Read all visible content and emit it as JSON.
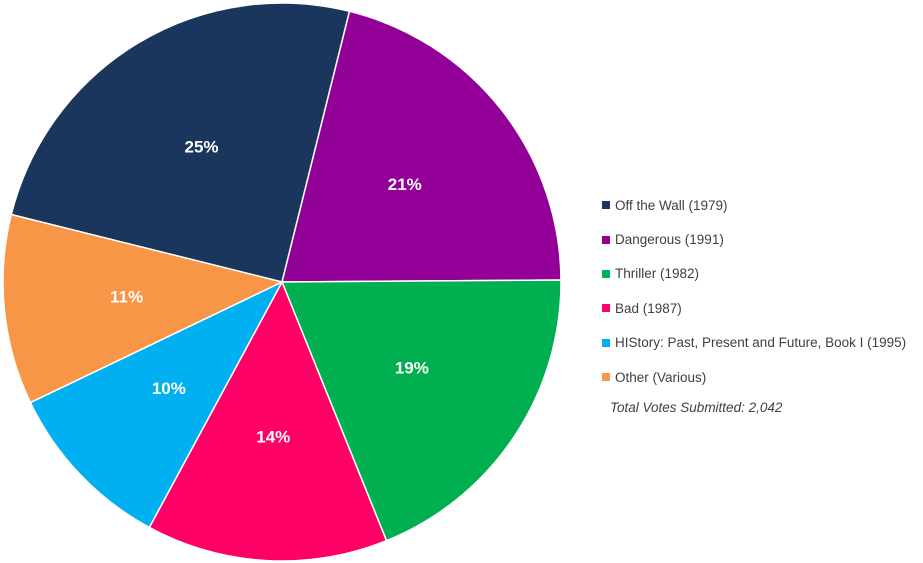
{
  "chart_data": {
    "type": "pie",
    "slices": [
      {
        "label": "Off the Wall (1979)",
        "value": 25,
        "display": "25%",
        "color": "#1b365d"
      },
      {
        "label": "Dangerous (1991)",
        "value": 21,
        "display": "21%",
        "color": "#920097"
      },
      {
        "label": "Thriller (1982)",
        "value": 19,
        "display": "19%",
        "color": "#00b050"
      },
      {
        "label": "Bad (1987)",
        "value": 14,
        "display": "14%",
        "color": "#ff0066"
      },
      {
        "label": "HIStory: Past, Present and Future, Book I (1995)",
        "value": 10,
        "display": "10%",
        "color": "#00b0f0"
      },
      {
        "label": "Other (Various)",
        "value": 11,
        "display": "11%",
        "color": "#f79646"
      }
    ],
    "legend_position": "right",
    "annotation": "Total Votes Submitted: 2,042"
  }
}
